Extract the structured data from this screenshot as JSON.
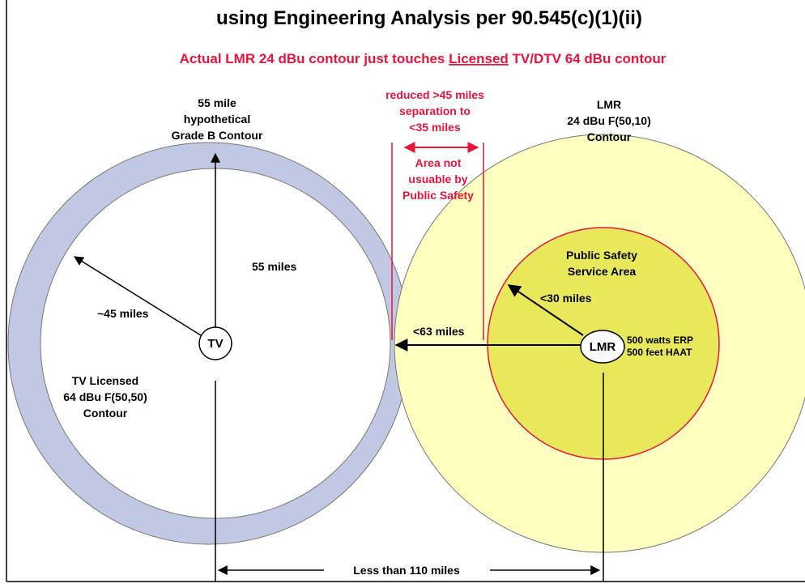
{
  "header": {
    "title": "using Engineering Analysis per 90.545(c)(1)(ii)",
    "subtitle": {
      "before": "Actual LMR 24 dBu contour just touches ",
      "underlined": "Licensed",
      "after": " TV/DTV 64 dBu contour"
    }
  },
  "labels": {
    "grade_b": [
      "55 mile",
      "hypothetical",
      "Grade B Contour"
    ],
    "reduced": [
      "reduced >45 miles",
      "separation to",
      "<35 miles"
    ],
    "lmr_contour": [
      "LMR",
      "24 dBu F(50,10)",
      "Contour"
    ],
    "not_usable": [
      "Area not",
      "usuable by",
      "Public Safety"
    ],
    "miles_55": "55 miles",
    "miles_45": "~45 miles",
    "tv": "TV",
    "tv_licensed": [
      "TV Licensed",
      "64 dBu F(50,50)",
      "Contour"
    ],
    "ps_area": [
      "Public Safety",
      "Service Area"
    ],
    "miles_30": "<30 miles",
    "miles_63": "<63 miles",
    "lmr": "LMR",
    "erp": [
      "500 watts ERP",
      "500 feet HAAT"
    ],
    "less_110": "Less than 110 miles"
  }
}
